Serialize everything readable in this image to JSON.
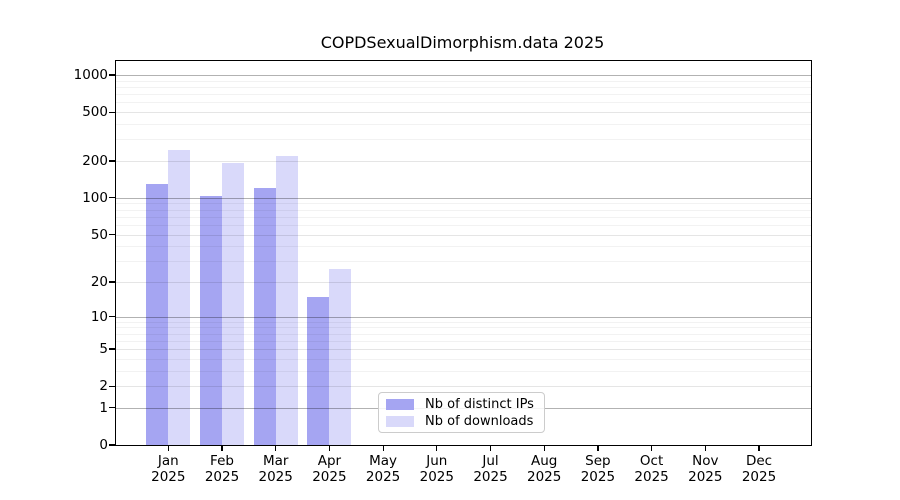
{
  "title": "COPDSexualDimorphism.data 2025",
  "legend": {
    "items": [
      {
        "label": "Nb of distinct IPs",
        "color": "#a5a5f2"
      },
      {
        "label": "Nb of downloads",
        "color": "#d9d9fa"
      }
    ]
  },
  "chart_data": {
    "type": "bar",
    "title": "COPDSexualDimorphism.data 2025",
    "xlabel": "",
    "ylabel": "",
    "scale": "log1p",
    "grid": "horizontal",
    "legend_position": "lower-center-inside",
    "categories": [
      "Jan 2025",
      "Feb 2025",
      "Mar 2025",
      "Apr 2025",
      "May 2025",
      "Jun 2025",
      "Jul 2025",
      "Aug 2025",
      "Sep 2025",
      "Oct 2025",
      "Nov 2025",
      "Dec 2025"
    ],
    "series": [
      {
        "name": "Nb of distinct IPs",
        "color": "#a5a5f2",
        "values": [
          131,
          104,
          120,
          15,
          null,
          null,
          null,
          null,
          null,
          null,
          null,
          null
        ]
      },
      {
        "name": "Nb of downloads",
        "color": "#d9d9fa",
        "values": [
          245,
          192,
          218,
          26,
          null,
          null,
          null,
          null,
          null,
          null,
          null,
          null
        ]
      }
    ],
    "y_ticks": [
      0,
      1,
      2,
      5,
      10,
      20,
      50,
      100,
      200,
      500,
      1000
    ],
    "ylim": [
      0,
      1300
    ],
    "colors": {
      "major_gridline": "rgba(0,0,0,0.30)",
      "minor_labeled_gridline": "rgba(0,0,0,0.10)",
      "minor_unlabeled_gridline": "rgba(0,0,0,0.05)",
      "axis": "#000000"
    }
  }
}
